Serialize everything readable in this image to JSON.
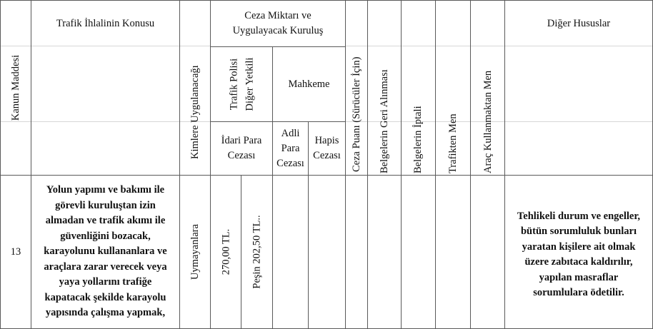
{
  "header": {
    "kanun_maddesi": "Kanun Maddesi",
    "ihlal_konusu": "Trafik İhlalinin Konusu",
    "kimlere": "Kimlere Uygulanacağı",
    "ceza_miktari_line1": "Ceza Miktarı ve",
    "ceza_miktari_line2": "Uygulayacak Kuruluş",
    "trafik_polisi_line1": "Trafik Polisi",
    "trafik_polisi_line2": "Diğer Yetkili",
    "mahkeme": "Mahkeme",
    "idari_para_line1": "İdari Para",
    "idari_para_line2": "Cezası",
    "adli_para_line1": "Adli",
    "adli_para_line2": "Para",
    "adli_para_line3": "Cezası",
    "hapis_line1": "Hapis",
    "hapis_line2": "Cezası",
    "ceza_puani": "Ceza Puanı (Sürücüler İçin)",
    "belge_geri": "Belgelerin Geri Alınması",
    "belge_iptal": "Belgelerin İptali",
    "trafikten_men": "Trafikten Men",
    "arac_men": "Araç Kullanmaktan Men",
    "diger_hususlar": "Diğer Hususlar"
  },
  "row": {
    "madde": "13",
    "konu_lines": [
      "Yolun yapımı ve bakımı ile",
      "görevli kuruluştan izin",
      "almadan ve trafik akımı ile",
      "güvenliğini bozacak,",
      "karayolunu kullananlara ve",
      "araçlara zarar verecek veya",
      "yaya yollarını trafiğe",
      "kapatacak şekilde karayolu",
      "yapısında çalışma yapmak,"
    ],
    "kimlere": "Uymayanlara",
    "idari_ceza": "270,00 TL.",
    "pesin_ceza": "Peşin 202,50 TL..",
    "diger_lines": [
      "Tehlikeli durum ve engeller,",
      "bütün sorumluluk bunları",
      "yaratan kişilere ait olmak",
      "üzere zabıtaca kaldırılır,",
      "yapılan masraflar",
      "sorumlulara ödetilir."
    ]
  }
}
